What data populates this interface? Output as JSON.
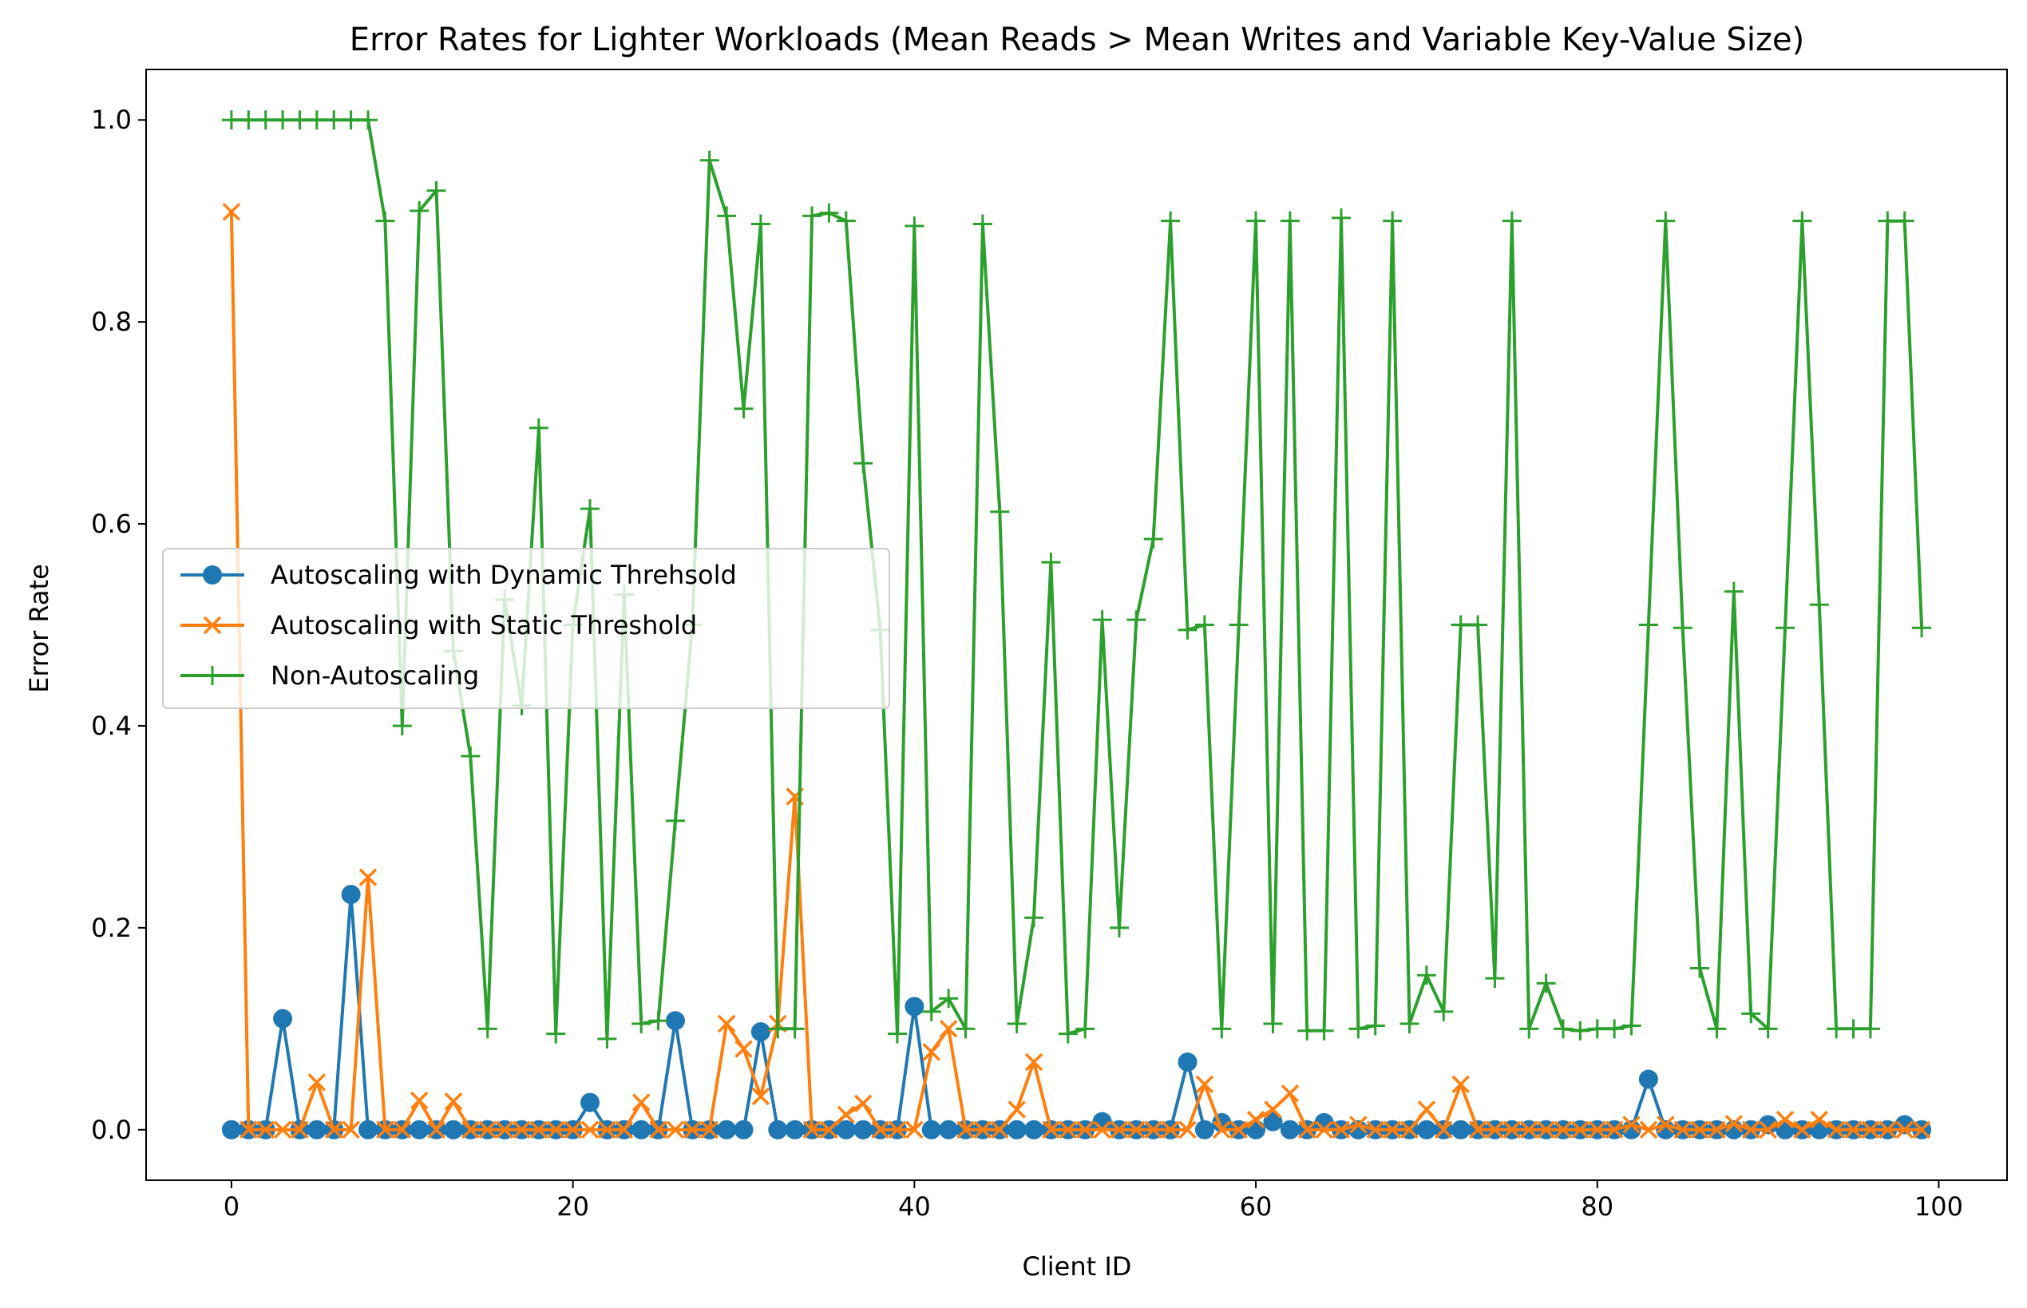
{
  "chart_data": {
    "type": "line",
    "title": "Error Rates for Lighter Workloads (Mean Reads > Mean Writes and Variable Key-Value Size)",
    "xlabel": "Client ID",
    "ylabel": "Error Rate",
    "xlim": [
      -5,
      104
    ],
    "ylim": [
      -0.05,
      1.05
    ],
    "xticks": [
      0,
      20,
      40,
      60,
      80,
      100
    ],
    "xtick_labels": [
      "0",
      "20",
      "40",
      "60",
      "80",
      "100"
    ],
    "yticks": [
      0.0,
      0.2,
      0.4,
      0.6,
      0.8,
      1.0
    ],
    "ytick_labels": [
      "0.0",
      "0.2",
      "0.4",
      "0.6",
      "0.8",
      "1.0"
    ],
    "grid": false,
    "legend_position": "center-left",
    "x": [
      0,
      1,
      2,
      3,
      4,
      5,
      6,
      7,
      8,
      9,
      10,
      11,
      12,
      13,
      14,
      15,
      16,
      17,
      18,
      19,
      20,
      21,
      22,
      23,
      24,
      25,
      26,
      27,
      28,
      29,
      30,
      31,
      32,
      33,
      34,
      35,
      36,
      37,
      38,
      39,
      40,
      41,
      42,
      43,
      44,
      45,
      46,
      47,
      48,
      49,
      50,
      51,
      52,
      53,
      54,
      55,
      56,
      57,
      58,
      59,
      60,
      61,
      62,
      63,
      64,
      65,
      66,
      67,
      68,
      69,
      70,
      71,
      72,
      73,
      74,
      75,
      76,
      77,
      78,
      79,
      80,
      81,
      82,
      83,
      84,
      85,
      86,
      87,
      88,
      89,
      90,
      91,
      92,
      93,
      94,
      95,
      96,
      97,
      98,
      99
    ],
    "series": [
      {
        "name": "Autoscaling with Dynamic Threhsold",
        "color": "#1f77b4",
        "marker": "circle",
        "values": [
          0,
          0,
          0,
          0.11,
          0,
          0,
          0,
          0.233,
          0,
          0,
          0,
          0,
          0,
          0,
          0,
          0,
          0,
          0,
          0,
          0,
          0,
          0.027,
          0,
          0,
          0,
          0,
          0.108,
          0,
          0,
          0,
          0,
          0.097,
          0,
          0,
          0,
          0,
          0,
          0,
          0,
          0,
          0.122,
          0,
          0,
          0,
          0,
          0,
          0,
          0,
          0,
          0,
          0,
          0.008,
          0,
          0,
          0,
          0,
          0.067,
          0,
          0.007,
          0,
          0,
          0.008,
          0,
          0,
          0.007,
          0,
          0,
          0,
          0,
          0,
          0,
          0,
          0,
          0,
          0,
          0,
          0,
          0,
          0,
          0,
          0,
          0,
          0,
          0.05,
          0,
          0,
          0,
          0,
          0,
          0,
          0.005,
          0,
          0,
          0,
          0,
          0,
          0,
          0,
          0.005,
          0
        ]
      },
      {
        "name": "Autoscaling with Static Threshold",
        "color": "#ff7f0e",
        "marker": "x",
        "values": [
          0.909,
          0,
          0,
          0,
          0,
          0.047,
          0,
          0,
          0.25,
          0,
          0,
          0.029,
          0,
          0.028,
          0,
          0,
          0,
          0,
          0,
          0,
          0,
          0,
          0,
          0,
          0.027,
          0,
          0,
          0,
          0,
          0.105,
          0.08,
          0.033,
          0.105,
          0.33,
          0,
          0,
          0.015,
          0.026,
          0,
          0,
          0,
          0.077,
          0.1,
          0,
          0,
          0,
          0.02,
          0.067,
          0,
          0,
          0,
          0,
          0,
          0,
          0,
          0,
          0,
          0.045,
          0,
          0,
          0.01,
          0.02,
          0.036,
          0,
          0,
          0,
          0.005,
          0,
          0,
          0,
          0.02,
          0,
          0.045,
          0,
          0,
          0,
          0,
          0,
          0,
          0,
          0,
          0,
          0.005,
          0,
          0.005,
          0,
          0,
          0,
          0.006,
          0,
          0,
          0.01,
          0,
          0.01,
          0,
          0,
          0,
          0,
          0,
          0
        ]
      },
      {
        "name": "Non-Autoscaling",
        "color": "#2ca02c",
        "marker": "plus",
        "values": [
          1,
          1,
          1,
          1,
          1,
          1,
          1,
          1,
          1,
          0.9,
          0.4,
          0.91,
          0.93,
          0.474,
          0.37,
          0.1,
          0.525,
          0.42,
          0.695,
          0.095,
          0.5,
          0.615,
          0.09,
          0.53,
          0.105,
          0.108,
          0.306,
          0.5,
          0.96,
          0.905,
          0.714,
          0.897,
          0.1,
          0.1,
          0.905,
          0.908,
          0.9,
          0.66,
          0.495,
          0.095,
          0.895,
          0.117,
          0.13,
          0.1,
          0.897,
          0.612,
          0.105,
          0.21,
          0.562,
          0.095,
          0.1,
          0.505,
          0.2,
          0.505,
          0.585,
          0.9,
          0.495,
          0.5,
          0.1,
          0.5,
          0.9,
          0.105,
          0.9,
          0.098,
          0.098,
          0.903,
          0.1,
          0.103,
          0.9,
          0.105,
          0.153,
          0.117,
          0.5,
          0.5,
          0.15,
          0.9,
          0.1,
          0.145,
          0.1,
          0.098,
          0.1,
          0.1,
          0.103,
          0.5,
          0.9,
          0.497,
          0.16,
          0.1,
          0.533,
          0.115,
          0.1,
          0.497,
          0.9,
          0.52,
          0.1,
          0.1,
          0.1,
          0.9,
          0.9,
          0.497
        ]
      }
    ]
  }
}
